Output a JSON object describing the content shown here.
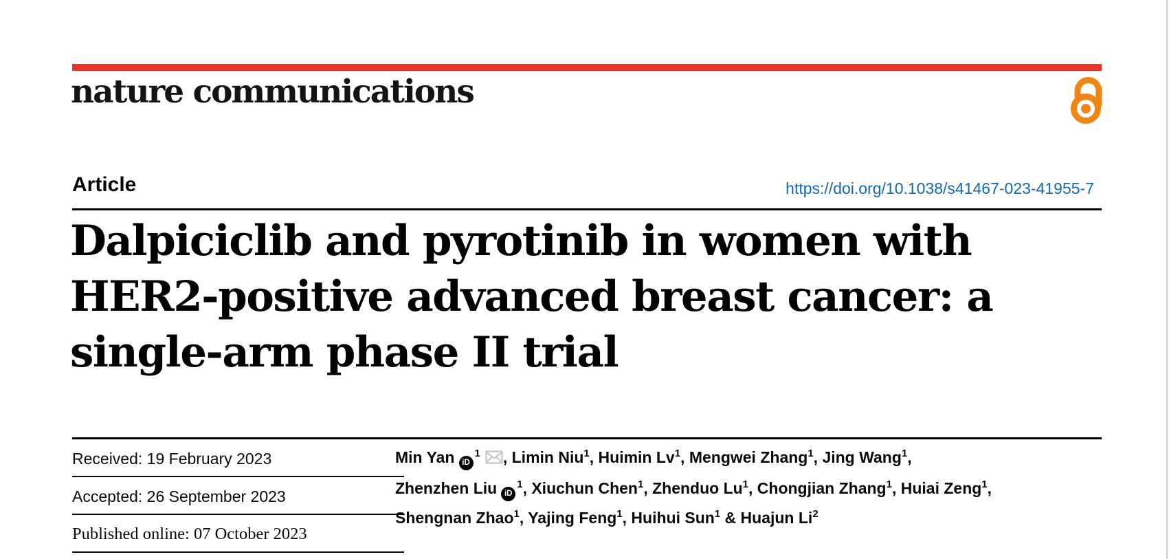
{
  "colors": {
    "brand_red": "#e53528",
    "link_blue": "#1268b1",
    "oa_orange": "#ef8614",
    "envelope_gray": "#c6c6c6"
  },
  "masthead": {
    "journal": "nature communications",
    "open_access_icon": "open-access-padlock"
  },
  "article": {
    "kind_label": "Article",
    "doi": "https://doi.org/10.1038/s41467-023-41955-7"
  },
  "title": {
    "lines": [
      "Dalpiciclib and pyrotinib in women with",
      "HER2-positive advanced breast cancer: a",
      "single-arm phase II trial"
    ]
  },
  "dates": [
    {
      "label": "Received:",
      "value": "19 February 2023",
      "serif": false
    },
    {
      "label": "Accepted:",
      "value": "26 September 2023",
      "serif": false
    },
    {
      "label": "Published online:",
      "value": "07 October 2023",
      "serif": true
    }
  ],
  "icons": {
    "orcid": "iD"
  },
  "authors": {
    "lines": [
      [
        {
          "name": "Min Yan",
          "orcid": true,
          "sup": "1",
          "envelope": true,
          "sep": ", "
        },
        {
          "name": "Limin Niu",
          "sup": "1",
          "sep": ", "
        },
        {
          "name": "Huimin Lv",
          "sup": "1",
          "sep": ", "
        },
        {
          "name": "Mengwei Zhang",
          "sup": "1",
          "sep": ", "
        },
        {
          "name": "Jing Wang",
          "sup": "1",
          "sep": ","
        }
      ],
      [
        {
          "name": "Zhenzhen Liu",
          "orcid": true,
          "sup": "1",
          "sep": ", "
        },
        {
          "name": "Xiuchun Chen",
          "sup": "1",
          "sep": ", "
        },
        {
          "name": "Zhenduo Lu",
          "sup": "1",
          "sep": ", "
        },
        {
          "name": "Chongjian Zhang",
          "sup": "1",
          "sep": ", "
        },
        {
          "name": "Huiai Zeng",
          "sup": "1",
          "sep": ","
        }
      ],
      [
        {
          "name": "Shengnan Zhao",
          "sup": "1",
          "sep": ", "
        },
        {
          "name": "Yajing Feng",
          "sup": "1",
          "sep": ", "
        },
        {
          "name": "Huihui Sun",
          "sup": "1",
          "sep": " & "
        },
        {
          "name": "Huajun Li",
          "sup": "2",
          "sep": ""
        }
      ]
    ]
  }
}
